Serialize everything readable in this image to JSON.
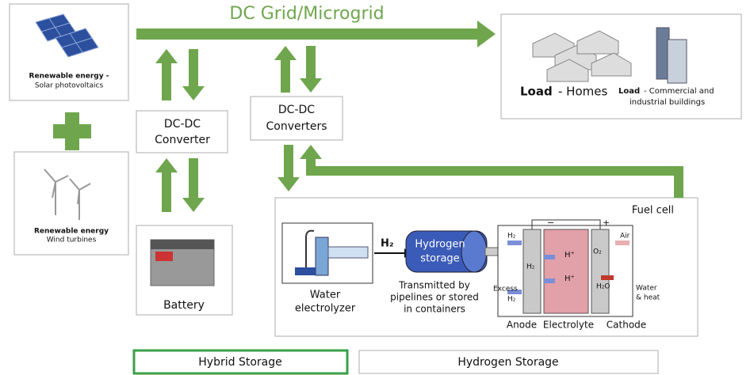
{
  "grid_title": "DC Grid/Microgrid",
  "sources": {
    "solar": {
      "title": "Renewable energy -",
      "subtitle": "Solar photovoltaics"
    },
    "wind": {
      "title": "Renewable energy",
      "subtitle": "Wind turbines"
    }
  },
  "load": {
    "homes_bold": "Load",
    "homes_rest": "- Homes",
    "commercial_bold": "Load",
    "commercial_rest": [
      "- Commercial and",
      "industrial buildings"
    ]
  },
  "converter_left": [
    "DC-DC",
    "Converter"
  ],
  "converter_right": [
    "DC-DC",
    "Converters"
  ],
  "battery": "Battery",
  "hydrogen": {
    "fuel_cell": "Fuel cell",
    "h2": "H₂",
    "storage": [
      "Hydrogen",
      "storage"
    ],
    "transmitted": [
      "Transmitted by",
      "pipelines or stored",
      "in containers"
    ],
    "electrolyzer": [
      "Water",
      "electrolyzer"
    ],
    "anode": "Anode",
    "electrolyte": "Electrolyte",
    "cathode": "Cathode",
    "cell": {
      "minus": "−",
      "plus": "+",
      "h2_in": "H₂",
      "h2_anode": "H₂",
      "h_plus_1": "H⁺",
      "h_plus_2": "H⁺",
      "o2": "O₂",
      "air": "Air",
      "excess": [
        "Excess",
        "H₂"
      ],
      "h2o": "H₂O",
      "water_heat": [
        "Water",
        "& heat"
      ]
    }
  },
  "footer": [
    "Hybrid Storage",
    "Hydrogen Storage"
  ]
}
